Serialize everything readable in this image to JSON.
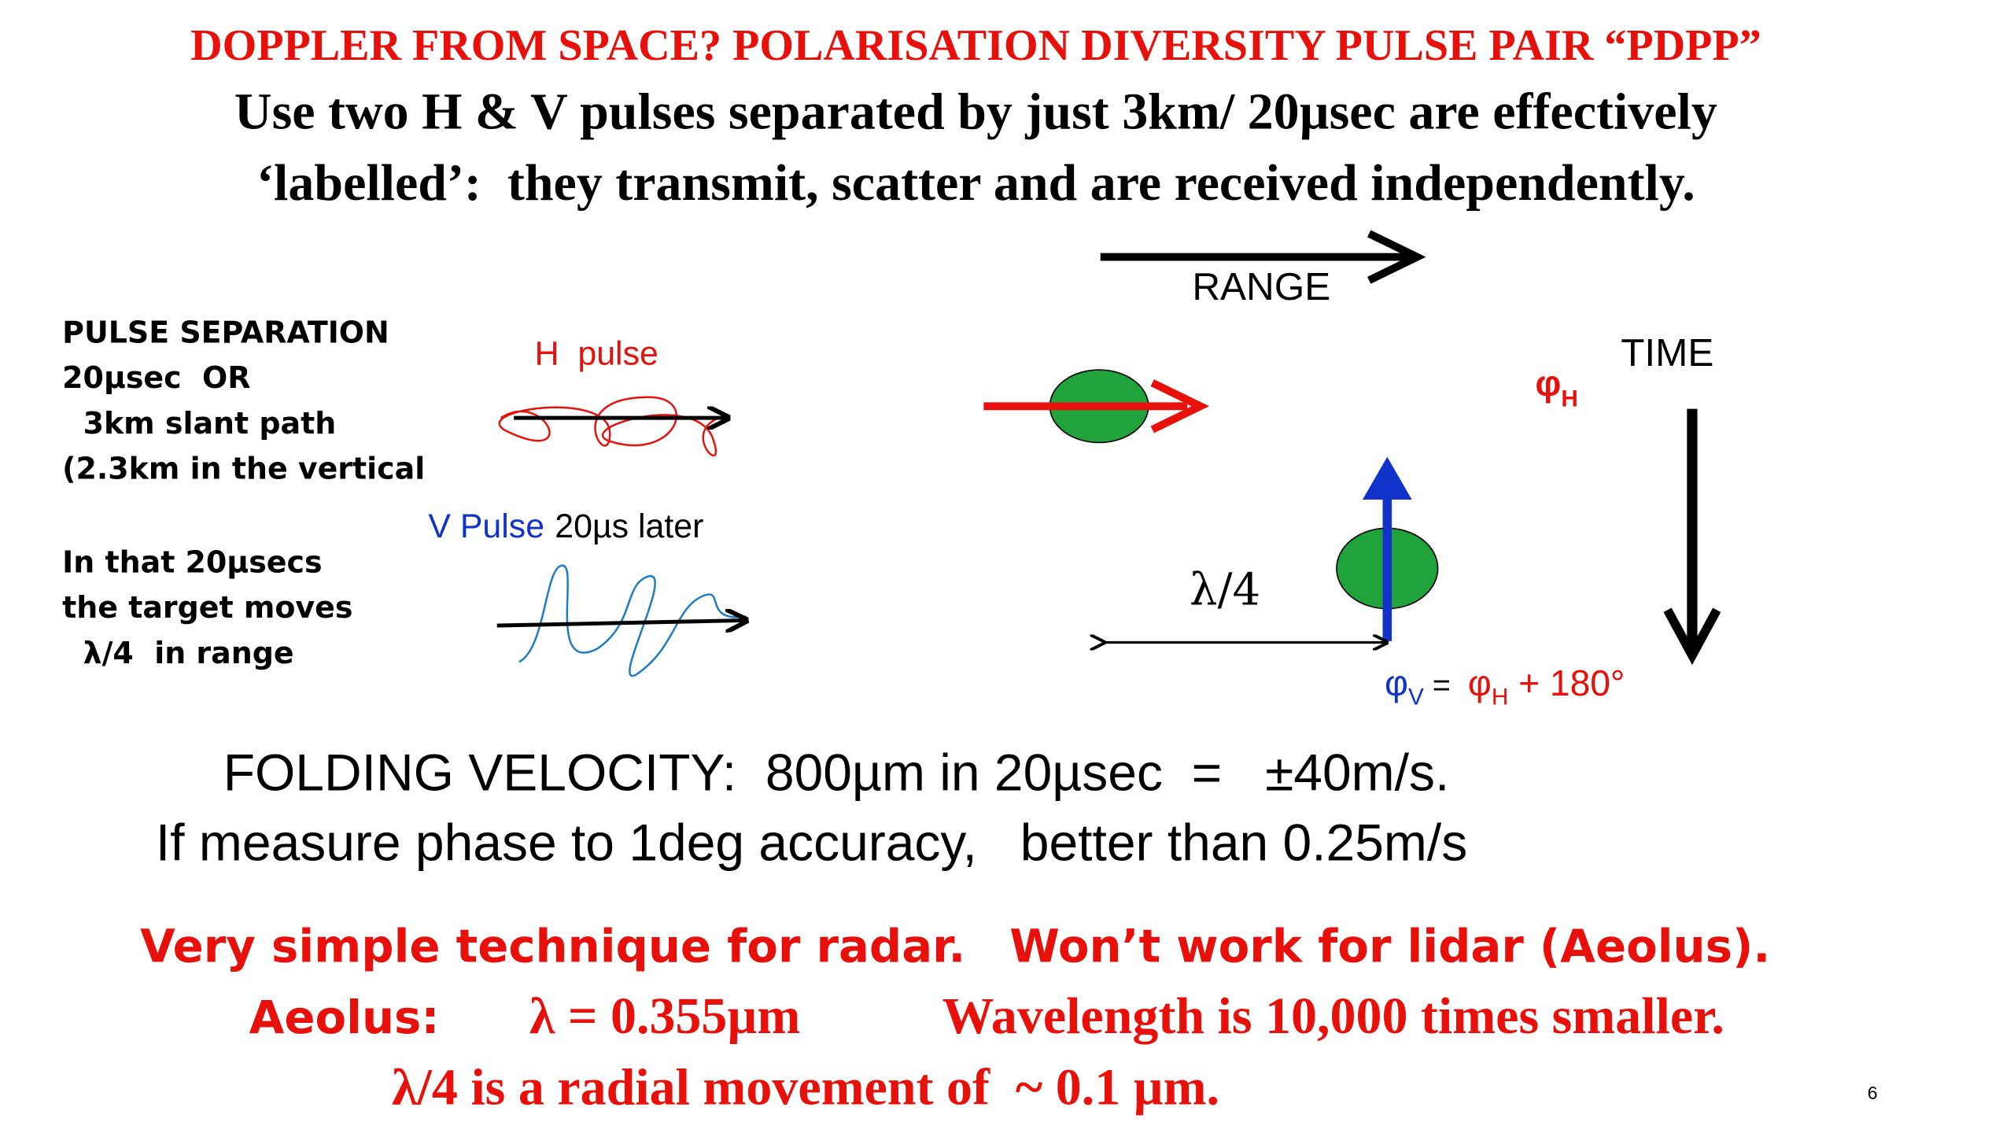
{
  "header": {
    "title": "DOPPLER FROM SPACE? POLARISATION DIVERSITY PULSE PAIR “PDPP”",
    "lines": [
      "Use two H & V pulses separated by just 3km/ 20µsec are effectively",
      "‘labelled’:  they transmit, scatter and are received independently."
    ]
  },
  "notes": {
    "separation": [
      "PULSE SEPARATION",
      "20µsec  OR",
      "  3km slant path",
      "(2.3km in the vertical"
    ],
    "movement": [
      "In that 20µsecs",
      "the target moves",
      "  λ/4  in range"
    ]
  },
  "diagram": {
    "h_pulse": "H  pulse",
    "v_pulse": "V Pulse",
    "v_later": "20µs later",
    "range": "RANGE",
    "time": "TIME",
    "quarter": "λ/4",
    "phi_h": {
      "symbol": "φ",
      "sub": "H"
    },
    "equation": {
      "lhs": "φ",
      "lhs_sub": "V",
      "eq": " =  ",
      "rhs": "φ",
      "rhs_sub": "H",
      "add": " + 180°"
    }
  },
  "body": [
    "FOLDING VELOCITY:  800µm in 20µsec  =   ±40m/s.",
    "If measure phase to 1deg accuracy,   better than 0.25m/s"
  ],
  "conclusion": {
    "radar": "Very simple technique for radar.",
    "lidar": "Won’t work for lidar (Aeolus).",
    "aeolus": "Aeolus:",
    "wavelength": "λ = 0.355µm",
    "smaller": "Wavelength is 10,000 times smaller.",
    "movement": "λ/4 is a radial movement of  ~ 0.1 µm."
  },
  "page_number": "6"
}
